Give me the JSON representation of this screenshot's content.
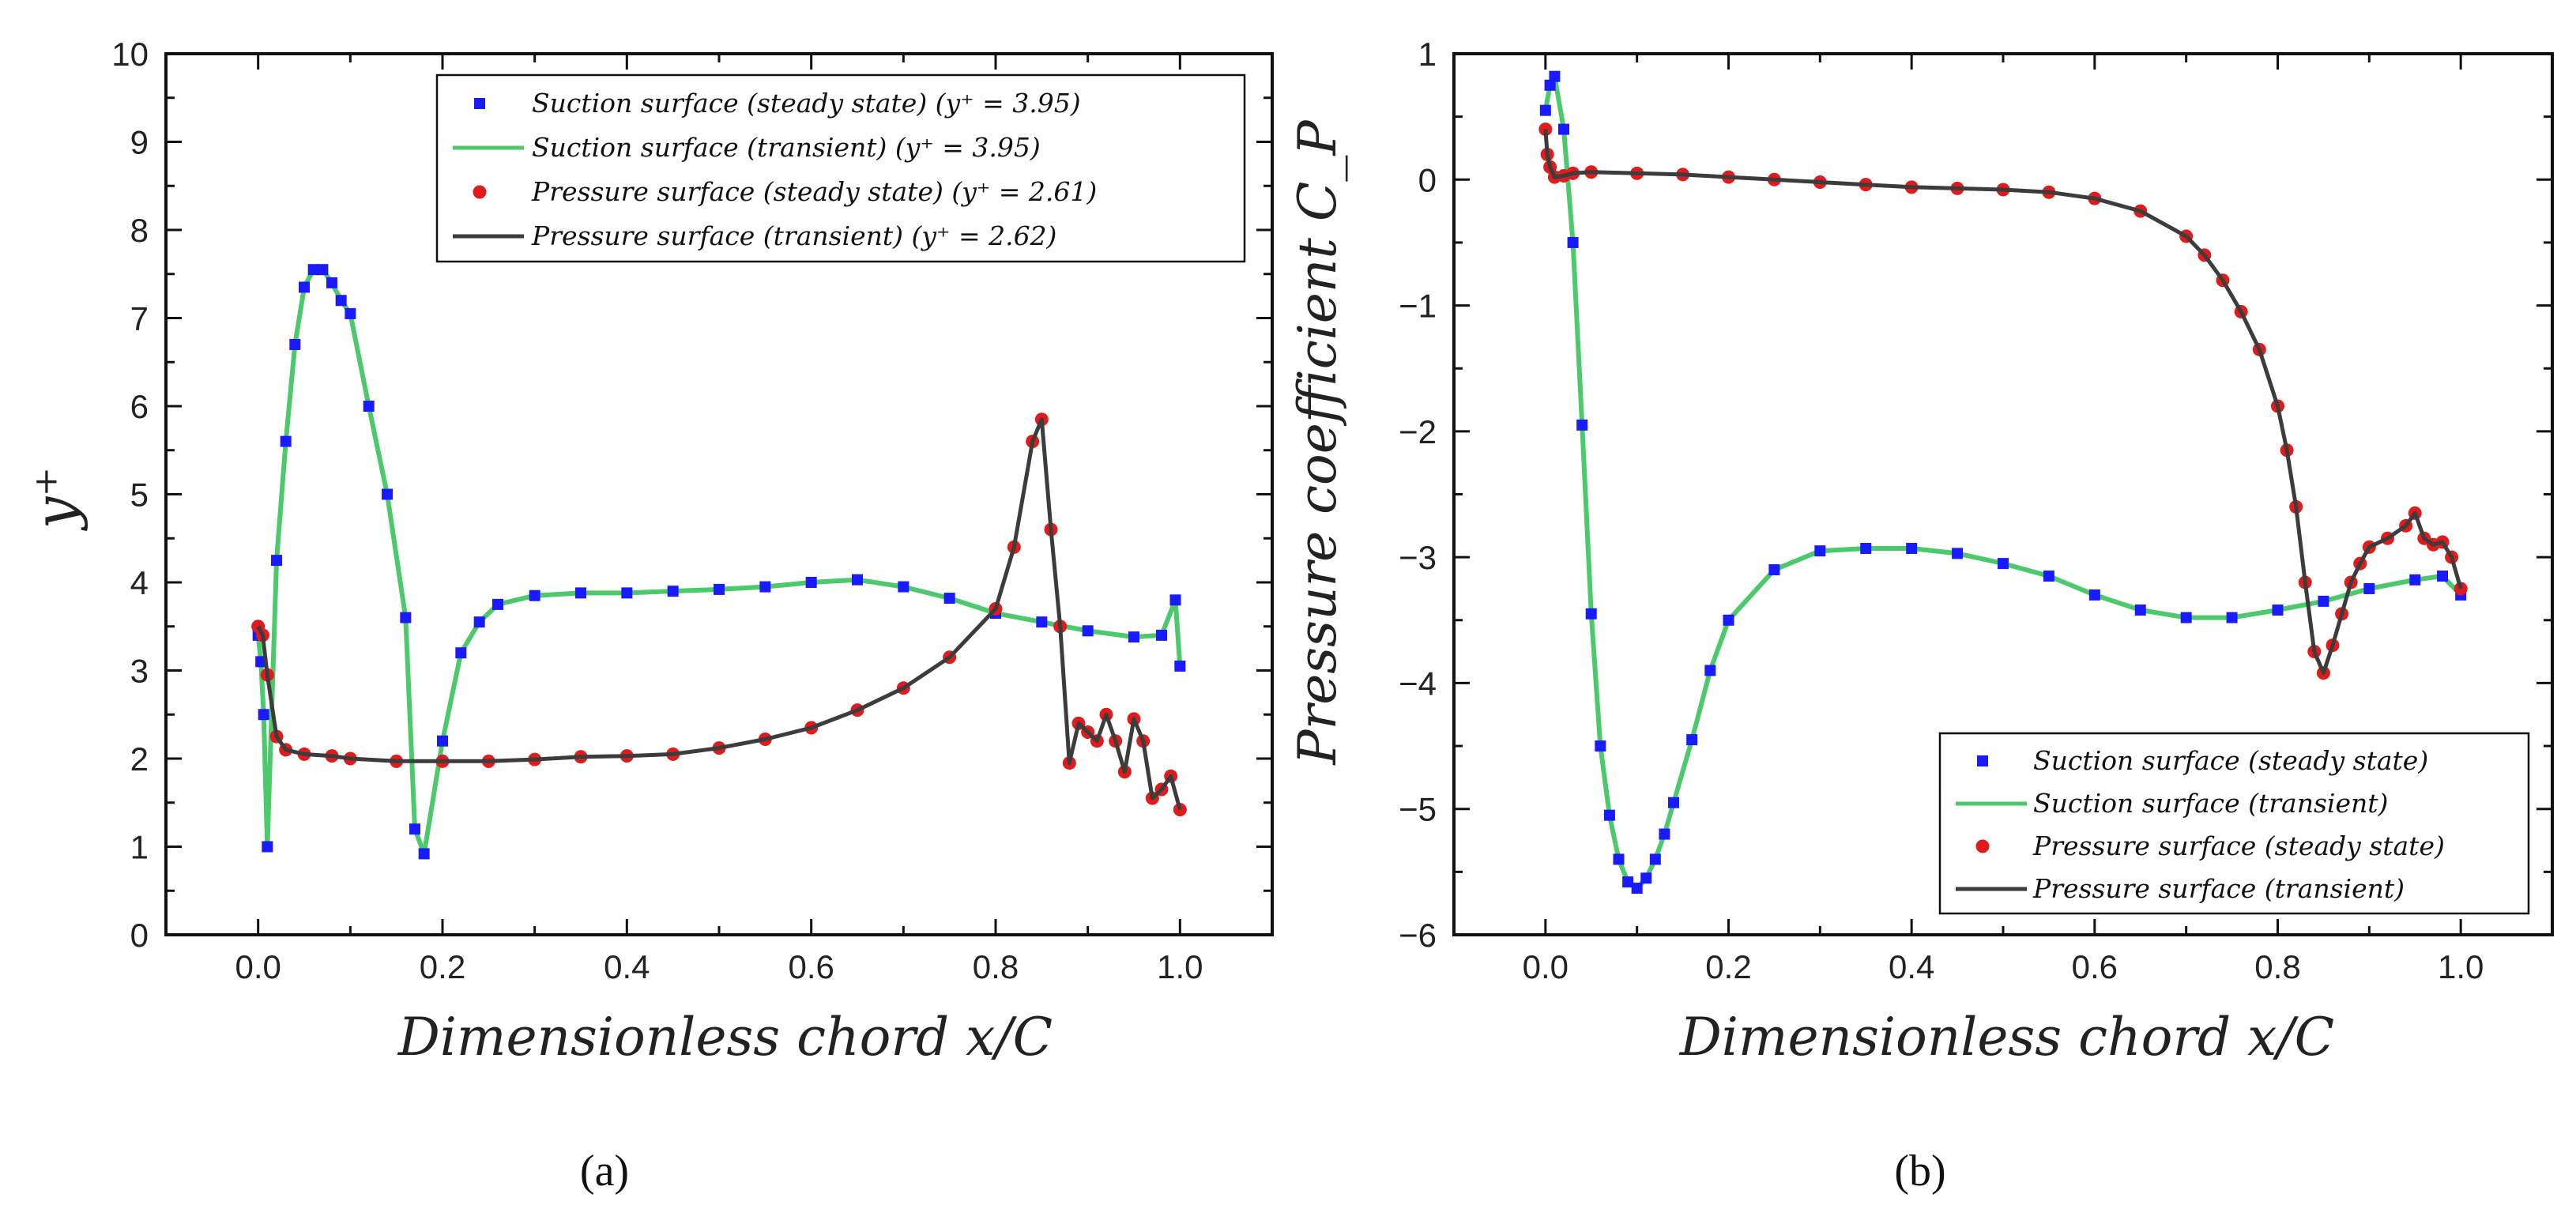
{
  "chart_data": [
    {
      "type": "line",
      "panel_label": "(a)",
      "xlabel": "Dimensionless chord x/C",
      "ylabel": "y⁺",
      "xlim": [
        -0.1,
        1.1
      ],
      "ylim": [
        0,
        10
      ],
      "x_ticks": [
        0.0,
        0.2,
        0.4,
        0.6,
        0.8,
        1.0
      ],
      "x_tick_labels": [
        "0.0",
        "0.2",
        "0.4",
        "0.6",
        "0.8",
        "1.0"
      ],
      "y_ticks": [
        0,
        1,
        2,
        3,
        4,
        5,
        6,
        7,
        8,
        9,
        10
      ],
      "y_tick_labels": [
        "0",
        "1",
        "2",
        "3",
        "4",
        "5",
        "6",
        "7",
        "8",
        "9",
        "10"
      ],
      "grid": false,
      "legend_position": "top-right",
      "series": [
        {
          "name": "Suction surface (steady state) (y⁺ = 3.95)",
          "style": "square-markers",
          "color": "#1a1aff",
          "x": [
            0.0,
            0.003,
            0.006,
            0.01,
            0.02,
            0.03,
            0.04,
            0.05,
            0.06,
            0.07,
            0.08,
            0.09,
            0.1,
            0.12,
            0.14,
            0.16,
            0.17,
            0.18,
            0.2,
            0.22,
            0.24,
            0.26,
            0.3,
            0.35,
            0.4,
            0.45,
            0.5,
            0.55,
            0.6,
            0.65,
            0.7,
            0.75,
            0.8,
            0.85,
            0.9,
            0.95,
            0.98,
            0.995,
            1.0
          ],
          "values": [
            3.4,
            3.1,
            2.5,
            1.0,
            4.25,
            5.6,
            6.7,
            7.35,
            7.55,
            7.55,
            7.4,
            7.2,
            7.05,
            6.0,
            5.0,
            3.6,
            1.2,
            0.92,
            2.2,
            3.2,
            3.55,
            3.75,
            3.85,
            3.88,
            3.88,
            3.9,
            3.92,
            3.95,
            4.0,
            4.03,
            3.95,
            3.82,
            3.65,
            3.55,
            3.45,
            3.38,
            3.4,
            3.8,
            3.05
          ]
        },
        {
          "name": "Suction surface (transient) (y⁺ = 3.95)",
          "style": "line",
          "color": "#4cc96a",
          "x": [
            0.0,
            0.003,
            0.006,
            0.01,
            0.02,
            0.03,
            0.04,
            0.05,
            0.06,
            0.07,
            0.08,
            0.09,
            0.1,
            0.12,
            0.14,
            0.16,
            0.17,
            0.18,
            0.2,
            0.22,
            0.24,
            0.26,
            0.3,
            0.35,
            0.4,
            0.45,
            0.5,
            0.55,
            0.6,
            0.65,
            0.7,
            0.75,
            0.8,
            0.85,
            0.9,
            0.95,
            0.98,
            0.995,
            1.0
          ],
          "values": [
            3.4,
            3.1,
            2.5,
            1.0,
            4.25,
            5.6,
            6.7,
            7.35,
            7.55,
            7.55,
            7.4,
            7.2,
            7.05,
            6.0,
            5.0,
            3.6,
            1.2,
            0.92,
            2.2,
            3.2,
            3.55,
            3.75,
            3.85,
            3.88,
            3.88,
            3.9,
            3.92,
            3.95,
            4.0,
            4.03,
            3.95,
            3.82,
            3.65,
            3.55,
            3.45,
            3.38,
            3.4,
            3.8,
            3.05
          ]
        },
        {
          "name": "Pressure surface (steady state) (y⁺ = 2.61)",
          "style": "circle-markers",
          "color": "#e01b1b",
          "x": [
            0.0,
            0.005,
            0.01,
            0.02,
            0.03,
            0.05,
            0.08,
            0.1,
            0.15,
            0.2,
            0.25,
            0.3,
            0.35,
            0.4,
            0.45,
            0.5,
            0.55,
            0.6,
            0.65,
            0.7,
            0.75,
            0.8,
            0.82,
            0.84,
            0.85,
            0.86,
            0.87,
            0.88,
            0.89,
            0.9,
            0.91,
            0.92,
            0.93,
            0.94,
            0.95,
            0.96,
            0.97,
            0.98,
            0.99,
            1.0
          ],
          "values": [
            3.5,
            3.4,
            2.95,
            2.25,
            2.1,
            2.05,
            2.03,
            2.0,
            1.97,
            1.97,
            1.97,
            1.99,
            2.02,
            2.03,
            2.05,
            2.12,
            2.22,
            2.35,
            2.55,
            2.8,
            3.15,
            3.7,
            4.4,
            5.6,
            5.85,
            4.6,
            3.5,
            1.95,
            2.4,
            2.3,
            2.2,
            2.5,
            2.2,
            1.85,
            2.45,
            2.2,
            1.55,
            1.65,
            1.8,
            1.42
          ]
        },
        {
          "name": "Pressure surface (transient) (y⁺ = 2.62)",
          "style": "line",
          "color": "#3c3c3c",
          "x": [
            0.0,
            0.005,
            0.01,
            0.02,
            0.03,
            0.05,
            0.08,
            0.1,
            0.15,
            0.2,
            0.25,
            0.3,
            0.35,
            0.4,
            0.45,
            0.5,
            0.55,
            0.6,
            0.65,
            0.7,
            0.75,
            0.8,
            0.82,
            0.84,
            0.85,
            0.86,
            0.87,
            0.88,
            0.89,
            0.9,
            0.91,
            0.92,
            0.93,
            0.94,
            0.95,
            0.96,
            0.97,
            0.98,
            0.99,
            1.0
          ],
          "values": [
            3.5,
            3.4,
            2.95,
            2.25,
            2.1,
            2.05,
            2.03,
            2.0,
            1.97,
            1.97,
            1.97,
            1.99,
            2.02,
            2.03,
            2.05,
            2.12,
            2.22,
            2.35,
            2.55,
            2.8,
            3.15,
            3.7,
            4.4,
            5.6,
            5.85,
            4.6,
            3.5,
            1.95,
            2.4,
            2.3,
            2.2,
            2.5,
            2.2,
            1.85,
            2.45,
            2.2,
            1.55,
            1.65,
            1.8,
            1.42
          ]
        }
      ]
    },
    {
      "type": "line",
      "panel_label": "(b)",
      "xlabel": "Dimensionless chord x/C",
      "ylabel": "Pressure coefficient C_P",
      "xlim": [
        -0.1,
        1.1
      ],
      "ylim": [
        -6,
        1
      ],
      "x_ticks": [
        0.0,
        0.2,
        0.4,
        0.6,
        0.8,
        1.0
      ],
      "x_tick_labels": [
        "0.0",
        "0.2",
        "0.4",
        "0.6",
        "0.8",
        "1.0"
      ],
      "y_ticks": [
        -6,
        -5,
        -4,
        -3,
        -2,
        -1,
        0,
        1
      ],
      "y_tick_labels": [
        "−6",
        "−5",
        "−4",
        "−3",
        "−2",
        "−1",
        "0",
        "1"
      ],
      "grid": false,
      "legend_position": "bottom-right",
      "series": [
        {
          "name": "Suction surface (steady state)",
          "style": "square-markers",
          "color": "#1a1aff",
          "x": [
            0.0,
            0.005,
            0.01,
            0.02,
            0.03,
            0.04,
            0.05,
            0.06,
            0.07,
            0.08,
            0.09,
            0.1,
            0.11,
            0.12,
            0.13,
            0.14,
            0.16,
            0.18,
            0.2,
            0.25,
            0.3,
            0.35,
            0.4,
            0.45,
            0.5,
            0.55,
            0.6,
            0.65,
            0.7,
            0.75,
            0.8,
            0.85,
            0.9,
            0.95,
            0.98,
            1.0
          ],
          "values": [
            0.55,
            0.75,
            0.82,
            0.4,
            -0.5,
            -1.95,
            -3.45,
            -4.5,
            -5.05,
            -5.4,
            -5.58,
            -5.63,
            -5.55,
            -5.4,
            -5.2,
            -4.95,
            -4.45,
            -3.9,
            -3.5,
            -3.1,
            -2.95,
            -2.93,
            -2.93,
            -2.97,
            -3.05,
            -3.15,
            -3.3,
            -3.42,
            -3.48,
            -3.48,
            -3.42,
            -3.35,
            -3.25,
            -3.18,
            -3.15,
            -3.3
          ]
        },
        {
          "name": "Suction surface (transient)",
          "style": "line",
          "color": "#4cc96a",
          "x": [
            0.0,
            0.005,
            0.01,
            0.02,
            0.03,
            0.04,
            0.05,
            0.06,
            0.07,
            0.08,
            0.09,
            0.1,
            0.11,
            0.12,
            0.13,
            0.14,
            0.16,
            0.18,
            0.2,
            0.25,
            0.3,
            0.35,
            0.4,
            0.45,
            0.5,
            0.55,
            0.6,
            0.65,
            0.7,
            0.75,
            0.8,
            0.85,
            0.9,
            0.95,
            0.98,
            1.0
          ],
          "values": [
            0.55,
            0.75,
            0.82,
            0.4,
            -0.5,
            -1.95,
            -3.45,
            -4.5,
            -5.05,
            -5.4,
            -5.58,
            -5.63,
            -5.55,
            -5.4,
            -5.2,
            -4.95,
            -4.45,
            -3.9,
            -3.5,
            -3.1,
            -2.95,
            -2.93,
            -2.93,
            -2.97,
            -3.05,
            -3.15,
            -3.3,
            -3.42,
            -3.48,
            -3.48,
            -3.42,
            -3.35,
            -3.25,
            -3.18,
            -3.15,
            -3.3
          ]
        },
        {
          "name": "Pressure surface (steady state)",
          "style": "circle-markers",
          "color": "#e01b1b",
          "x": [
            0.0,
            0.002,
            0.005,
            0.01,
            0.02,
            0.03,
            0.05,
            0.1,
            0.15,
            0.2,
            0.25,
            0.3,
            0.35,
            0.4,
            0.45,
            0.5,
            0.55,
            0.6,
            0.65,
            0.7,
            0.72,
            0.74,
            0.76,
            0.78,
            0.8,
            0.81,
            0.82,
            0.83,
            0.84,
            0.85,
            0.86,
            0.87,
            0.88,
            0.89,
            0.9,
            0.92,
            0.94,
            0.95,
            0.96,
            0.97,
            0.98,
            0.99,
            1.0
          ],
          "values": [
            0.4,
            0.2,
            0.1,
            0.02,
            0.03,
            0.05,
            0.06,
            0.05,
            0.04,
            0.02,
            0.0,
            -0.02,
            -0.04,
            -0.06,
            -0.07,
            -0.08,
            -0.1,
            -0.15,
            -0.25,
            -0.45,
            -0.6,
            -0.8,
            -1.05,
            -1.35,
            -1.8,
            -2.15,
            -2.6,
            -3.2,
            -3.75,
            -3.92,
            -3.7,
            -3.45,
            -3.2,
            -3.05,
            -2.92,
            -2.85,
            -2.75,
            -2.65,
            -2.85,
            -2.9,
            -2.88,
            -3.0,
            -3.25
          ]
        },
        {
          "name": "Pressure surface (transient)",
          "style": "line",
          "color": "#3c3c3c",
          "x": [
            0.0,
            0.002,
            0.005,
            0.01,
            0.02,
            0.03,
            0.05,
            0.1,
            0.15,
            0.2,
            0.25,
            0.3,
            0.35,
            0.4,
            0.45,
            0.5,
            0.55,
            0.6,
            0.65,
            0.7,
            0.72,
            0.74,
            0.76,
            0.78,
            0.8,
            0.81,
            0.82,
            0.83,
            0.84,
            0.85,
            0.86,
            0.87,
            0.88,
            0.89,
            0.9,
            0.92,
            0.94,
            0.95,
            0.96,
            0.97,
            0.98,
            0.99,
            1.0
          ],
          "values": [
            0.4,
            0.2,
            0.1,
            0.02,
            0.03,
            0.05,
            0.06,
            0.05,
            0.04,
            0.02,
            0.0,
            -0.02,
            -0.04,
            -0.06,
            -0.07,
            -0.08,
            -0.1,
            -0.15,
            -0.25,
            -0.45,
            -0.6,
            -0.8,
            -1.05,
            -1.35,
            -1.8,
            -2.15,
            -2.6,
            -3.2,
            -3.75,
            -3.92,
            -3.7,
            -3.45,
            -3.2,
            -3.05,
            -2.92,
            -2.85,
            -2.75,
            -2.65,
            -2.85,
            -2.9,
            -2.88,
            -3.0,
            -3.25
          ]
        }
      ]
    }
  ]
}
